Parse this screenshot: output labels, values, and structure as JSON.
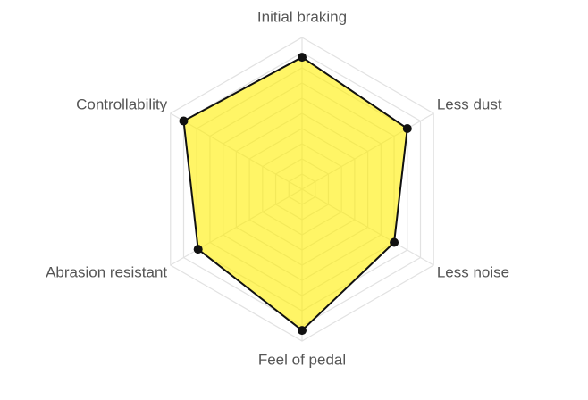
{
  "chart_data": {
    "type": "radar",
    "categories": [
      "Initial braking",
      "Less dust",
      "Less noise",
      "Feel of pedal",
      "Abrasion resistant",
      "Controllability"
    ],
    "values": [
      87,
      80,
      70,
      93,
      79,
      90
    ],
    "rlim": [
      0,
      100
    ],
    "rticks": [
      0,
      10,
      20,
      30,
      40,
      50,
      60,
      70,
      80,
      90,
      100
    ],
    "fill_color": "#ffee00",
    "line_color": "#111111",
    "grid": true
  }
}
